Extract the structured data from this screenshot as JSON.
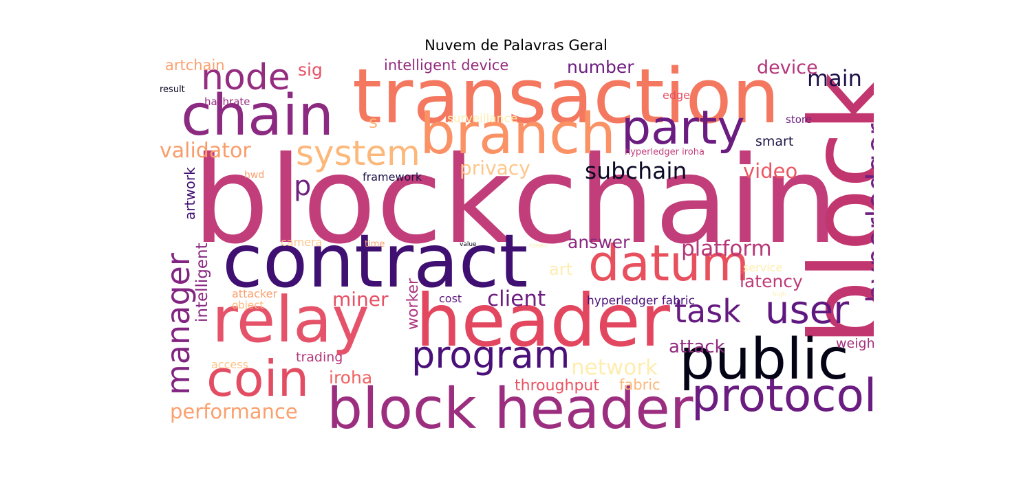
{
  "title": "Nuvem de Palavras Geral",
  "words": [
    {
      "text": "blockchain",
      "color": "#c13e7a"
    },
    {
      "text": "transaction",
      "color": "#f47860"
    },
    {
      "text": "header",
      "color": "#e2475f"
    },
    {
      "text": "block",
      "color": "#c2366f"
    },
    {
      "text": "contract",
      "color": "#3f0f72"
    },
    {
      "text": "relay",
      "color": "#e5536a"
    },
    {
      "text": "chain",
      "color": "#8c2981"
    },
    {
      "text": "public",
      "color": "#050416"
    },
    {
      "text": "block header",
      "color": "#9c2e7f"
    },
    {
      "text": "datum",
      "color": "#e8505e"
    },
    {
      "text": "branch",
      "color": "#fa9266"
    },
    {
      "text": "party",
      "color": "#6a1c80"
    },
    {
      "text": "coin",
      "color": "#e34d63"
    },
    {
      "text": "protocol",
      "color": "#6a1c80"
    },
    {
      "text": "program",
      "color": "#4a1079"
    },
    {
      "text": "user",
      "color": "#5f187f"
    },
    {
      "text": "node",
      "color": "#942c80"
    },
    {
      "text": "system",
      "color": "#fcb77a"
    },
    {
      "text": "hyperledger",
      "color": "#711f81"
    },
    {
      "text": "task",
      "color": "#641a80"
    },
    {
      "text": "manager",
      "color": "#812581"
    },
    {
      "text": "subchain",
      "color": "#0b0924"
    },
    {
      "text": "platform",
      "color": "#b73779"
    },
    {
      "text": "validator",
      "color": "#f99c6a"
    },
    {
      "text": "main",
      "color": "#1d1147"
    },
    {
      "text": "network",
      "color": "#feedb0"
    },
    {
      "text": "client",
      "color": "#6e1e81"
    },
    {
      "text": "device",
      "color": "#b5367a"
    },
    {
      "text": "video",
      "color": "#ea5661"
    },
    {
      "text": "performance",
      "color": "#fba06e"
    },
    {
      "text": "answer",
      "color": "#8a2981"
    },
    {
      "text": "miner",
      "color": "#e65164"
    },
    {
      "text": "privacy",
      "color": "#fec68a"
    },
    {
      "text": "attack",
      "color": "#912b81"
    },
    {
      "text": "latency",
      "color": "#bf3a77"
    },
    {
      "text": "number",
      "color": "#6e1e81"
    },
    {
      "text": "intelligent device",
      "color": "#962c80"
    },
    {
      "text": "intelligent",
      "color": "#892881"
    },
    {
      "text": "iroha",
      "color": "#ef6260"
    },
    {
      "text": "throughput",
      "color": "#e85362"
    },
    {
      "text": "worker",
      "color": "#ab337c"
    },
    {
      "text": "art",
      "color": "#feedb0"
    },
    {
      "text": "artchain",
      "color": "#fba06e"
    },
    {
      "text": "sig",
      "color": "#e65164"
    },
    {
      "text": "p",
      "color": "#711f81"
    },
    {
      "text": "smart",
      "color": "#1d1147"
    },
    {
      "text": "fabric",
      "color": "#fcb77a"
    },
    {
      "text": "artwork",
      "color": "#3f0f72"
    },
    {
      "text": "hyperledger fabric",
      "color": "#4a1079"
    },
    {
      "text": "weight",
      "color": "#a3307e"
    },
    {
      "text": "trading",
      "color": "#b5367a"
    },
    {
      "text": "camera",
      "color": "#fec68a"
    },
    {
      "text": "framework",
      "color": "#1d1147"
    },
    {
      "text": "surveillance",
      "color": "#feedb0"
    },
    {
      "text": "attacker",
      "color": "#fba06e"
    },
    {
      "text": "cost",
      "color": "#5f187f"
    },
    {
      "text": "service",
      "color": "#feedb0"
    },
    {
      "text": "s",
      "color": "#fcb77a"
    },
    {
      "text": "hashrate",
      "color": "#962c80"
    },
    {
      "text": "object",
      "color": "#fcb77a"
    },
    {
      "text": "edge",
      "color": "#e65164"
    },
    {
      "text": "access",
      "color": "#fec68a"
    },
    {
      "text": "store",
      "color": "#6e1e81"
    },
    {
      "text": "hwd",
      "color": "#fba06e"
    },
    {
      "text": "hyperledger iroha",
      "color": "#c13e7a"
    },
    {
      "text": "result",
      "color": "#0b0924"
    },
    {
      "text": "time",
      "color": "#fba06e"
    },
    {
      "text": "value",
      "color": "#050416"
    },
    {
      "text": "token",
      "color": "#feedb0"
    },
    {
      "text": "high",
      "color": "#feedb0"
    }
  ]
}
